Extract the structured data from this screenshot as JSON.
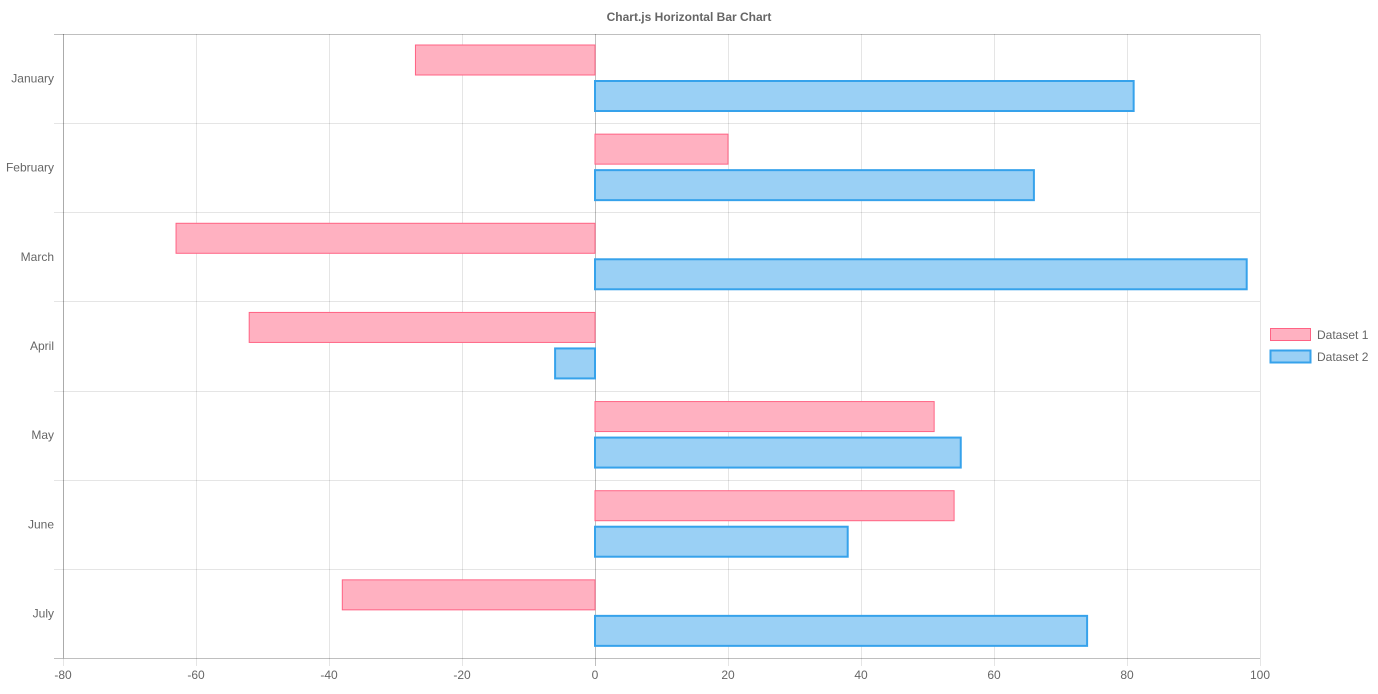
{
  "chart_data": {
    "type": "bar",
    "orientation": "horizontal",
    "title": "Chart.js Horizontal Bar Chart",
    "categories": [
      "January",
      "February",
      "March",
      "April",
      "May",
      "June",
      "July"
    ],
    "series": [
      {
        "name": "Dataset 1",
        "values": [
          -27,
          20,
          -63,
          -52,
          51,
          54,
          -38
        ],
        "fill": "#ffb1c1",
        "stroke": "#ff6384"
      },
      {
        "name": "Dataset 2",
        "values": [
          81,
          66,
          98,
          -6,
          55,
          38,
          74
        ],
        "fill": "#9ad0f5",
        "stroke": "#36a2eb"
      }
    ],
    "xlim": [
      -80,
      100
    ],
    "x_ticks": [
      "-80",
      "-60",
      "-40",
      "-20",
      "0",
      "20",
      "40",
      "60",
      "80",
      "100"
    ],
    "grid": true,
    "legend_position": "right"
  }
}
